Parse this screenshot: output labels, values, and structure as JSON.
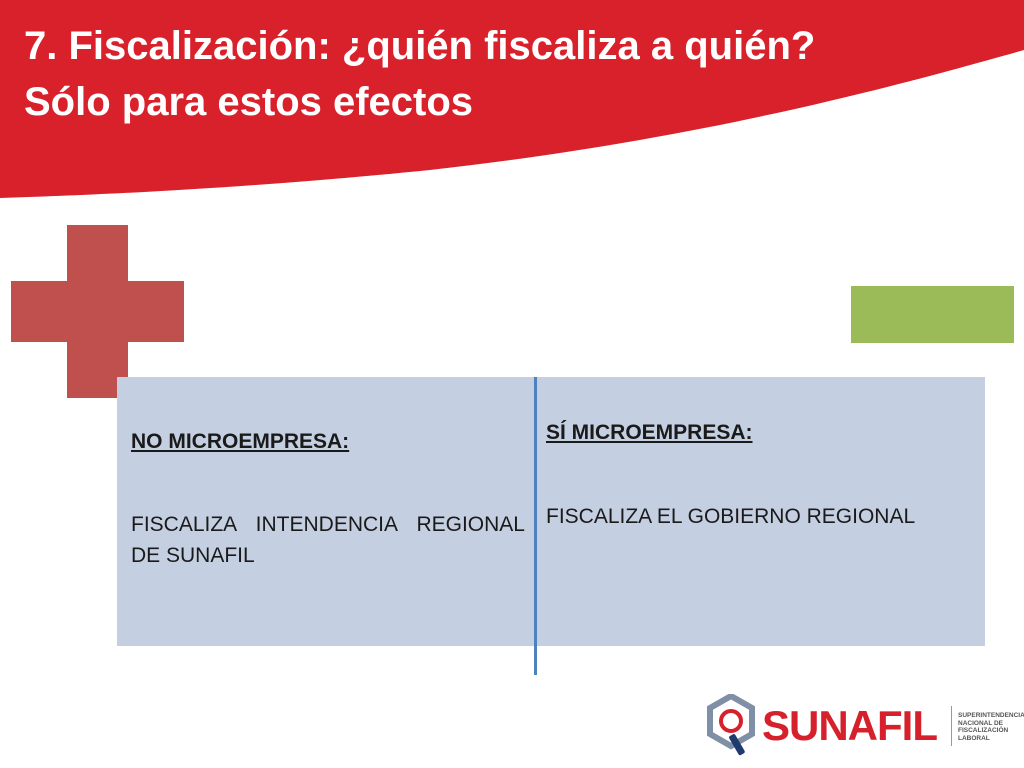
{
  "colors": {
    "header_red": "#d9212c",
    "plus_red": "#c0504d",
    "minus_green": "#9bbb59",
    "panel_blue": "#c5cfe2",
    "divider_blue": "#4f81bd"
  },
  "title": {
    "line1": "7. Fiscalización: ¿quién fiscaliza a quién?",
    "line2": "Sólo para estos efectos"
  },
  "left_column": {
    "heading": "NO MICROEMPRESA:",
    "body": "FISCALIZA INTENDENCIA REGIONAL DE SUNAFIL"
  },
  "right_column": {
    "heading": "SÍ MICROEMPRESA:",
    "body": "FISCALIZA EL GOBIERNO REGIONAL"
  },
  "logo": {
    "icon": "magnifier-q-icon",
    "wordmark": "SUNAFIL",
    "subtitle_lines": [
      "SUPERINTENDENCIA",
      "NACIONAL DE",
      "FISCALIZACIÓN",
      "LABORAL"
    ]
  }
}
